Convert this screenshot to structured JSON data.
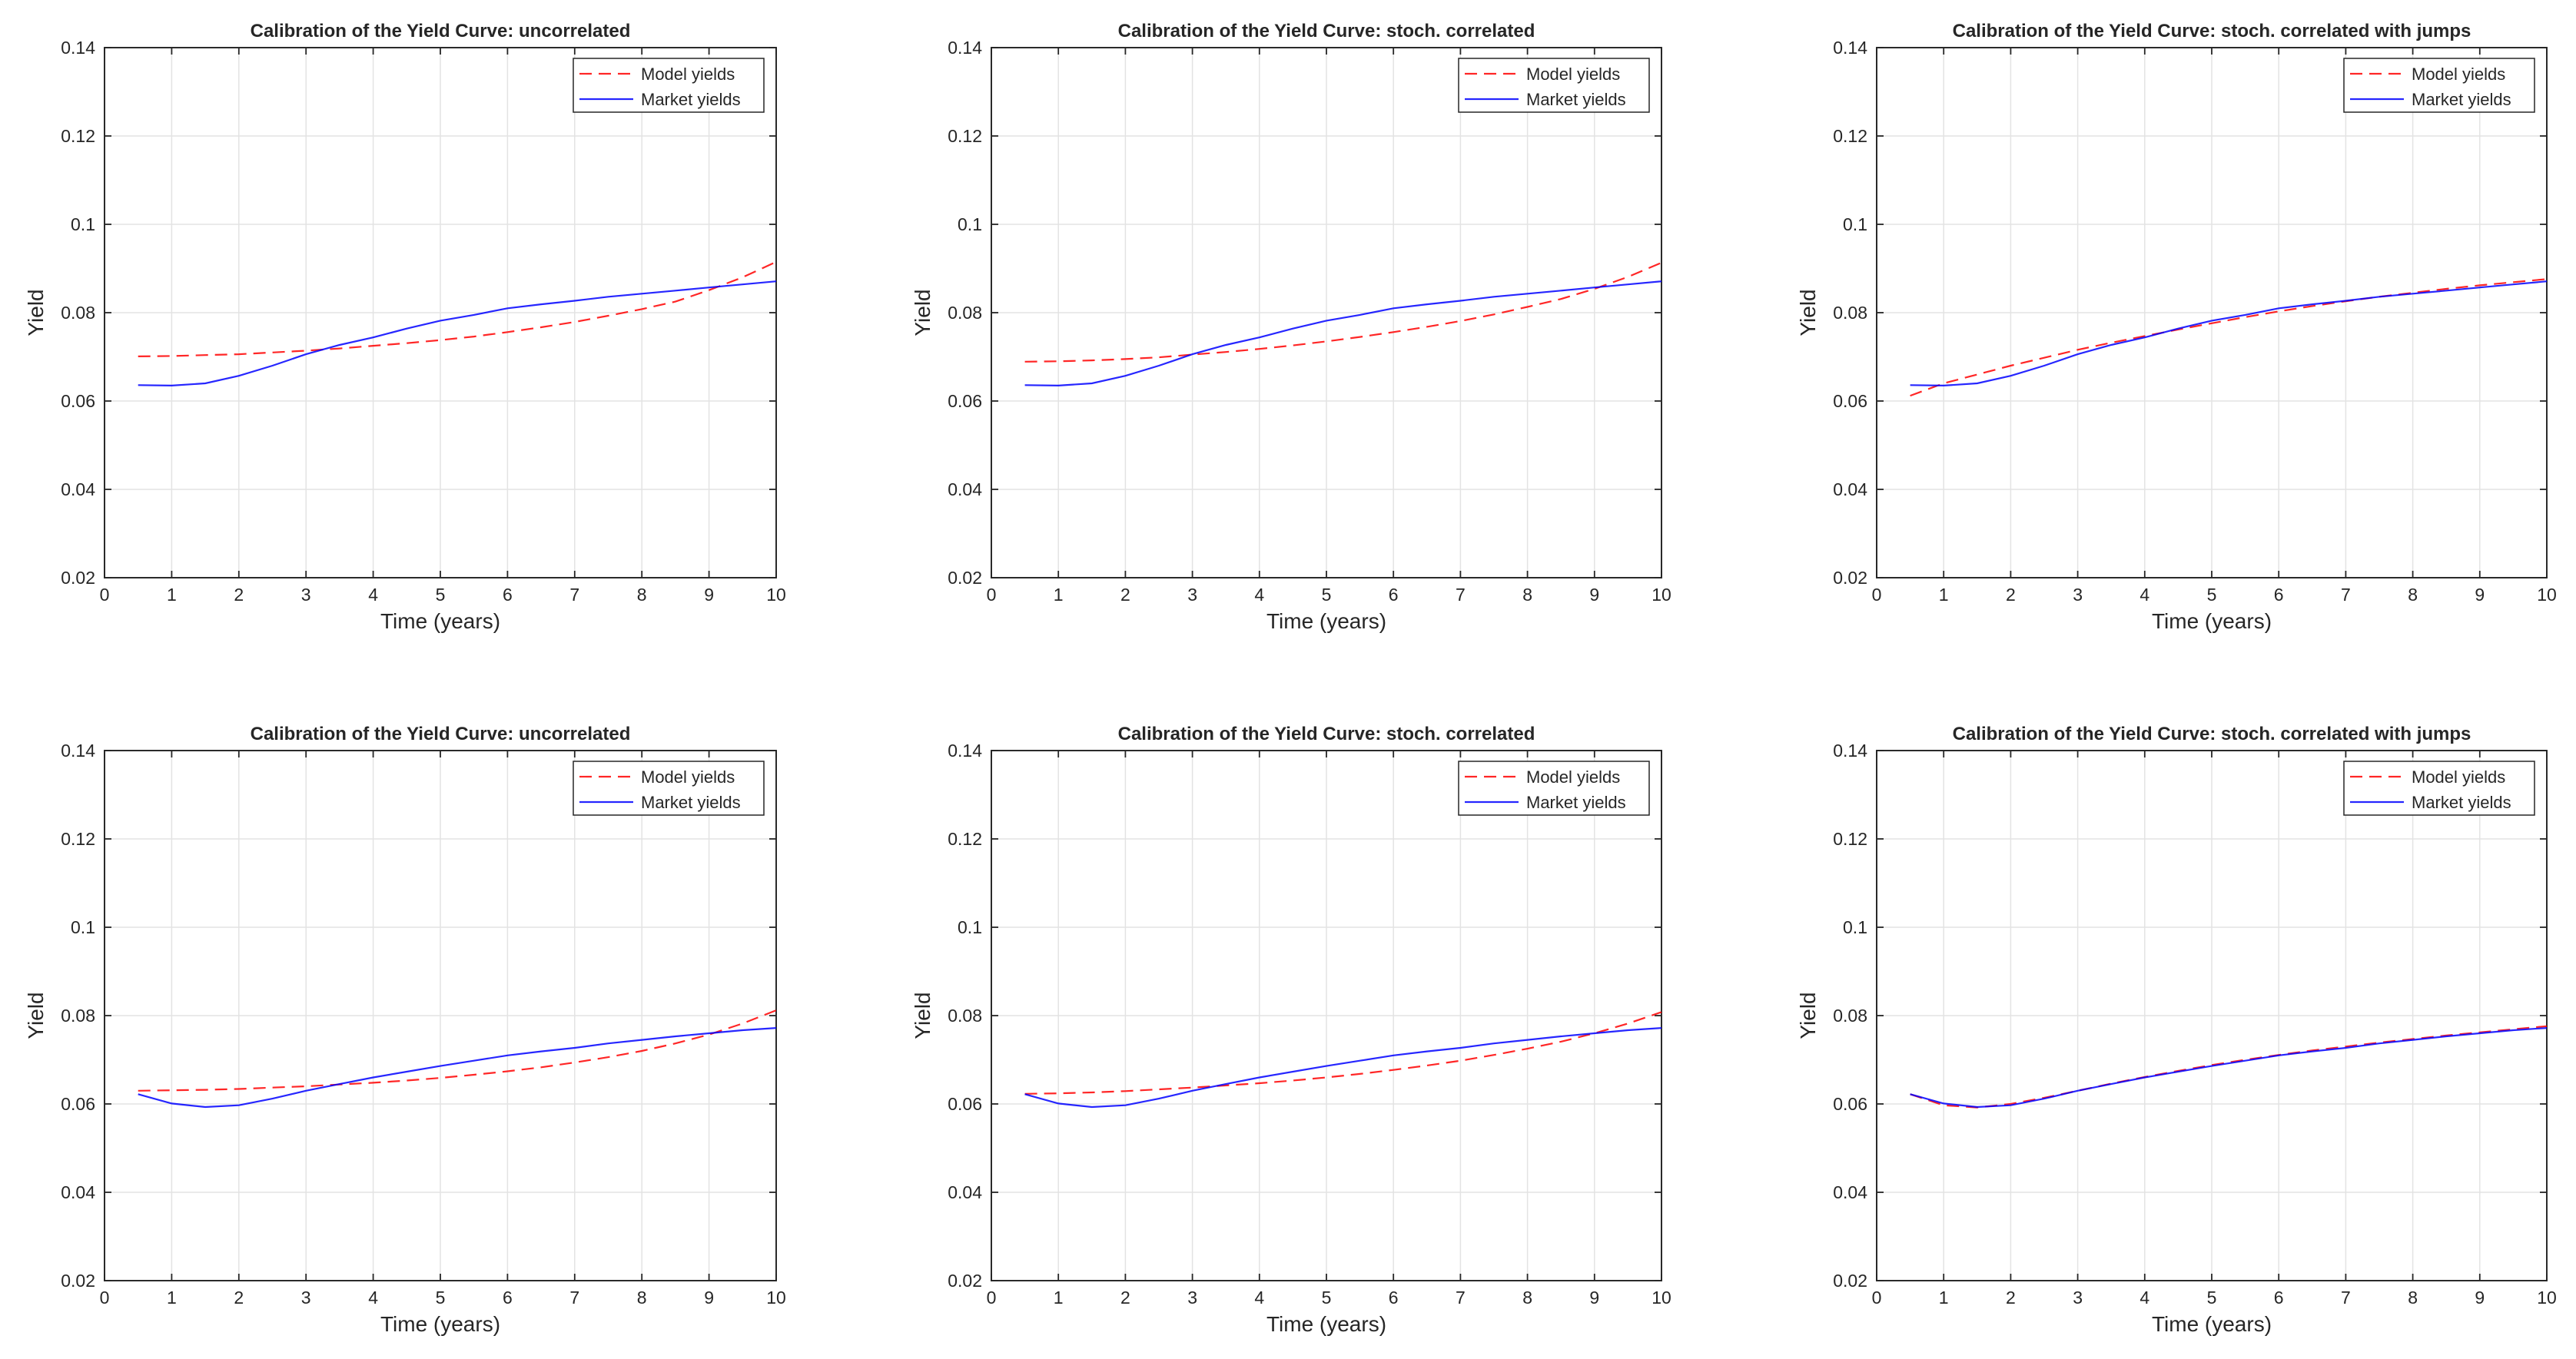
{
  "chart_data": [
    {
      "type": "line",
      "title": "Calibration of the Yield Curve: uncorrelated",
      "xlabel": "Time (years)",
      "ylabel": "Yield",
      "xlim": [
        0,
        10
      ],
      "ylim": [
        0.02,
        0.14
      ],
      "xticks": [
        "0",
        "1",
        "2",
        "3",
        "4",
        "5",
        "6",
        "7",
        "8",
        "9",
        "10"
      ],
      "yticks": [
        "0.02",
        "0.04",
        "0.06",
        "0.08",
        "0.1",
        "0.12",
        "0.14"
      ],
      "grid": true,
      "legend_position": "top-right",
      "x": [
        0.5,
        1,
        1.5,
        2,
        2.5,
        3,
        3.5,
        4,
        4.5,
        5,
        5.5,
        6,
        6.5,
        7,
        7.5,
        8,
        8.5,
        9,
        9.5,
        10
      ],
      "series": [
        {
          "name": "Model yields",
          "style": "dashed",
          "color": "#ff0000",
          "values": [
            0.0701,
            0.0702,
            0.0704,
            0.0706,
            0.071,
            0.0714,
            0.0719,
            0.0725,
            0.0731,
            0.0738,
            0.0746,
            0.0756,
            0.0767,
            0.0779,
            0.0793,
            0.0808,
            0.0825,
            0.0851,
            0.088,
            0.0915
          ]
        },
        {
          "name": "Market yields",
          "style": "solid",
          "color": "#0000ff",
          "values": [
            0.0636,
            0.0635,
            0.064,
            0.0657,
            0.068,
            0.0706,
            0.0727,
            0.0744,
            0.0764,
            0.0782,
            0.0795,
            0.081,
            0.0819,
            0.0827,
            0.0836,
            0.0843,
            0.085,
            0.0857,
            0.0864,
            0.0871
          ]
        }
      ]
    },
    {
      "type": "line",
      "title": "Calibration of the Yield Curve: stoch. correlated",
      "xlabel": "Time (years)",
      "ylabel": "Yield",
      "xlim": [
        0,
        10
      ],
      "ylim": [
        0.02,
        0.14
      ],
      "xticks": [
        "0",
        "1",
        "2",
        "3",
        "4",
        "5",
        "6",
        "7",
        "8",
        "9",
        "10"
      ],
      "yticks": [
        "0.02",
        "0.04",
        "0.06",
        "0.08",
        "0.1",
        "0.12",
        "0.14"
      ],
      "grid": true,
      "legend_position": "top-right",
      "x": [
        0.5,
        1,
        1.5,
        2,
        2.5,
        3,
        3.5,
        4,
        4.5,
        5,
        5.5,
        6,
        6.5,
        7,
        7.5,
        8,
        8.5,
        9,
        9.5,
        10
      ],
      "series": [
        {
          "name": "Model yields",
          "style": "dashed",
          "color": "#ff0000",
          "values": [
            0.0689,
            0.069,
            0.0692,
            0.0695,
            0.0699,
            0.0705,
            0.0711,
            0.0718,
            0.0726,
            0.0735,
            0.0745,
            0.0756,
            0.0768,
            0.0781,
            0.0796,
            0.0813,
            0.0831,
            0.0854,
            0.0881,
            0.0913
          ]
        },
        {
          "name": "Market yields",
          "style": "solid",
          "color": "#0000ff",
          "values": [
            0.0636,
            0.0635,
            0.064,
            0.0657,
            0.068,
            0.0706,
            0.0727,
            0.0744,
            0.0764,
            0.0782,
            0.0795,
            0.081,
            0.0819,
            0.0827,
            0.0836,
            0.0843,
            0.085,
            0.0857,
            0.0864,
            0.0871
          ]
        }
      ]
    },
    {
      "type": "line",
      "title": "Calibration of the Yield Curve: stoch. correlated with jumps",
      "xlabel": "Time (years)",
      "ylabel": "Yield",
      "xlim": [
        0,
        10
      ],
      "ylim": [
        0.02,
        0.14
      ],
      "xticks": [
        "0",
        "1",
        "2",
        "3",
        "4",
        "5",
        "6",
        "7",
        "8",
        "9",
        "10"
      ],
      "yticks": [
        "0.02",
        "0.04",
        "0.06",
        "0.08",
        "0.1",
        "0.12",
        "0.14"
      ],
      "grid": true,
      "legend_position": "top-right",
      "x": [
        0.5,
        1,
        1.5,
        2,
        2.5,
        3,
        3.5,
        4,
        4.5,
        5,
        5.5,
        6,
        6.5,
        7,
        7.5,
        8,
        8.5,
        9,
        9.5,
        10
      ],
      "series": [
        {
          "name": "Model yields",
          "style": "dashed",
          "color": "#ff0000",
          "values": [
            0.0612,
            0.064,
            0.066,
            0.068,
            0.0698,
            0.0716,
            0.0732,
            0.0747,
            0.0762,
            0.0776,
            0.079,
            0.0803,
            0.0815,
            0.0826,
            0.0836,
            0.0845,
            0.0854,
            0.0862,
            0.0869,
            0.0876
          ]
        },
        {
          "name": "Market yields",
          "style": "solid",
          "color": "#0000ff",
          "values": [
            0.0636,
            0.0635,
            0.064,
            0.0657,
            0.068,
            0.0706,
            0.0727,
            0.0744,
            0.0764,
            0.0782,
            0.0795,
            0.081,
            0.0819,
            0.0827,
            0.0836,
            0.0843,
            0.085,
            0.0857,
            0.0864,
            0.0871
          ]
        }
      ]
    },
    {
      "type": "line",
      "title": "Calibration of the Yield Curve: uncorrelated",
      "xlabel": "Time (years)",
      "ylabel": "Yield",
      "xlim": [
        0,
        10
      ],
      "ylim": [
        0.02,
        0.14
      ],
      "xticks": [
        "0",
        "1",
        "2",
        "3",
        "4",
        "5",
        "6",
        "7",
        "8",
        "9",
        "10"
      ],
      "yticks": [
        "0.02",
        "0.04",
        "0.06",
        "0.08",
        "0.1",
        "0.12",
        "0.14"
      ],
      "grid": true,
      "legend_position": "top-right",
      "x": [
        0.5,
        1,
        1.5,
        2,
        2.5,
        3,
        3.5,
        4,
        4.5,
        5,
        5.5,
        6,
        6.5,
        7,
        7.5,
        8,
        8.5,
        9,
        9.5,
        10
      ],
      "series": [
        {
          "name": "Model yields",
          "style": "dashed",
          "color": "#ff0000",
          "values": [
            0.063,
            0.0631,
            0.0632,
            0.0634,
            0.0637,
            0.064,
            0.0644,
            0.0648,
            0.0653,
            0.0659,
            0.0666,
            0.0674,
            0.0683,
            0.0694,
            0.0706,
            0.072,
            0.0737,
            0.0757,
            0.0782,
            0.0812
          ]
        },
        {
          "name": "Market yields",
          "style": "solid",
          "color": "#0000ff",
          "values": [
            0.0622,
            0.0601,
            0.0593,
            0.0597,
            0.0612,
            0.063,
            0.0645,
            0.066,
            0.0673,
            0.0686,
            0.0698,
            0.071,
            0.0719,
            0.0727,
            0.0737,
            0.0745,
            0.0753,
            0.076,
            0.0767,
            0.0772
          ]
        }
      ]
    },
    {
      "type": "line",
      "title": "Calibration of the Yield Curve: stoch. correlated",
      "xlabel": "Time (years)",
      "ylabel": "Yield",
      "xlim": [
        0,
        10
      ],
      "ylim": [
        0.02,
        0.14
      ],
      "xticks": [
        "0",
        "1",
        "2",
        "3",
        "4",
        "5",
        "6",
        "7",
        "8",
        "9",
        "10"
      ],
      "yticks": [
        "0.02",
        "0.04",
        "0.06",
        "0.08",
        "0.1",
        "0.12",
        "0.14"
      ],
      "grid": true,
      "legend_position": "top-right",
      "x": [
        0.5,
        1,
        1.5,
        2,
        2.5,
        3,
        3.5,
        4,
        4.5,
        5,
        5.5,
        6,
        6.5,
        7,
        7.5,
        8,
        8.5,
        9,
        9.5,
        10
      ],
      "series": [
        {
          "name": "Model yields",
          "style": "dashed",
          "color": "#ff0000",
          "values": [
            0.0623,
            0.0624,
            0.0626,
            0.0629,
            0.0633,
            0.0637,
            0.0642,
            0.0647,
            0.0653,
            0.066,
            0.0668,
            0.0677,
            0.0687,
            0.0698,
            0.0711,
            0.0725,
            0.0741,
            0.076,
            0.0782,
            0.0808
          ]
        },
        {
          "name": "Market yields",
          "style": "solid",
          "color": "#0000ff",
          "values": [
            0.0622,
            0.0601,
            0.0593,
            0.0597,
            0.0612,
            0.063,
            0.0645,
            0.066,
            0.0673,
            0.0686,
            0.0698,
            0.071,
            0.0719,
            0.0727,
            0.0737,
            0.0745,
            0.0753,
            0.076,
            0.0767,
            0.0772
          ]
        }
      ]
    },
    {
      "type": "line",
      "title": "Calibration of the Yield Curve: stoch. correlated with jumps",
      "xlabel": "Time (years)",
      "ylabel": "Yield",
      "xlim": [
        0,
        10
      ],
      "ylim": [
        0.02,
        0.14
      ],
      "xticks": [
        "0",
        "1",
        "2",
        "3",
        "4",
        "5",
        "6",
        "7",
        "8",
        "9",
        "10"
      ],
      "yticks": [
        "0.02",
        "0.04",
        "0.06",
        "0.08",
        "0.1",
        "0.12",
        "0.14"
      ],
      "grid": true,
      "legend_position": "top-right",
      "x": [
        0.5,
        1,
        1.5,
        2,
        2.5,
        3,
        3.5,
        4,
        4.5,
        5,
        5.5,
        6,
        6.5,
        7,
        7.5,
        8,
        8.5,
        9,
        9.5,
        10
      ],
      "series": [
        {
          "name": "Model yields",
          "style": "dashed",
          "color": "#ff0000",
          "values": [
            0.0622,
            0.0597,
            0.0592,
            0.06,
            0.0614,
            0.063,
            0.0646,
            0.0661,
            0.0675,
            0.0688,
            0.07,
            0.0711,
            0.0721,
            0.073,
            0.0739,
            0.0747,
            0.0755,
            0.0762,
            0.0769,
            0.0776
          ]
        },
        {
          "name": "Market yields",
          "style": "solid",
          "color": "#0000ff",
          "values": [
            0.0622,
            0.0601,
            0.0593,
            0.0597,
            0.0612,
            0.063,
            0.0645,
            0.066,
            0.0673,
            0.0686,
            0.0698,
            0.071,
            0.0719,
            0.0727,
            0.0737,
            0.0745,
            0.0753,
            0.076,
            0.0767,
            0.0772
          ]
        }
      ]
    }
  ]
}
